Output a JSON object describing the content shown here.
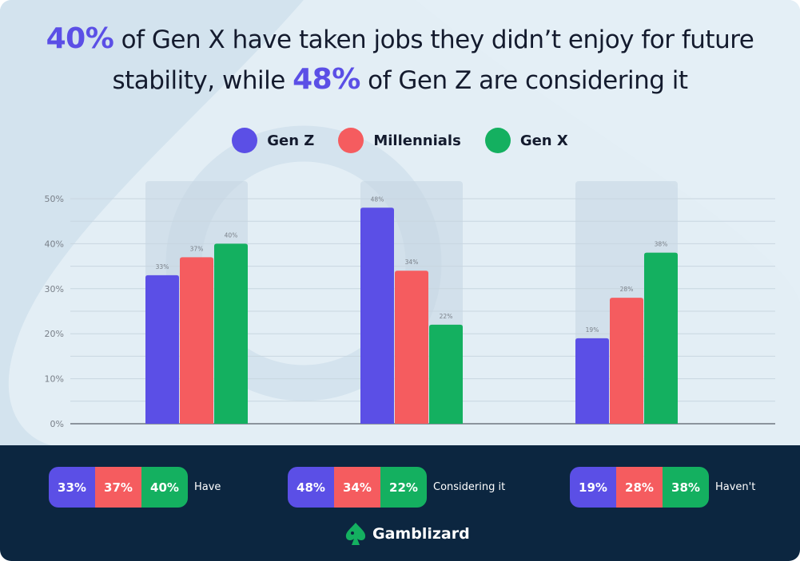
{
  "title": {
    "hl1": "40%",
    "part1": " of Gen X have taken jobs they didn’t enjoy for future",
    "part2": "stability, while ",
    "hl2": "48%",
    "part3": " of Gen Z are considering it"
  },
  "colors": {
    "gen_z": "#5b4fe6",
    "millennials": "#f55c5f",
    "gen_x": "#14b060",
    "footer": "#0c2640",
    "background": "#dce9f2"
  },
  "chart_data": {
    "type": "bar",
    "categories": [
      "Have",
      "Considering it",
      "Haven't"
    ],
    "series": [
      {
        "name": "Gen Z",
        "values": [
          33,
          48,
          19
        ]
      },
      {
        "name": "Millennials",
        "values": [
          37,
          34,
          28
        ]
      },
      {
        "name": "Gen X",
        "values": [
          40,
          22,
          38
        ]
      }
    ],
    "data_labels": [
      [
        "33%",
        "37%",
        "40%"
      ],
      [
        "48%",
        "34%",
        "22%"
      ],
      [
        "19%",
        "28%",
        "38%"
      ]
    ],
    "ylim": [
      0,
      50
    ],
    "yticks": [
      "0%",
      "10%",
      "20%",
      "30%",
      "40%",
      "50%"
    ],
    "grid": true,
    "legend_placement": "top-center",
    "x_tick_labels_shown": false
  },
  "summary": [
    {
      "values": [
        "33%",
        "37%",
        "40%"
      ],
      "label": "Have"
    },
    {
      "values": [
        "48%",
        "34%",
        "22%"
      ],
      "label": "Considering it"
    },
    {
      "values": [
        "19%",
        "28%",
        "38%"
      ],
      "label": "Haven't"
    }
  ],
  "brand": {
    "name": "Gamblizard",
    "icon": "spade-lizard-logo-icon"
  }
}
